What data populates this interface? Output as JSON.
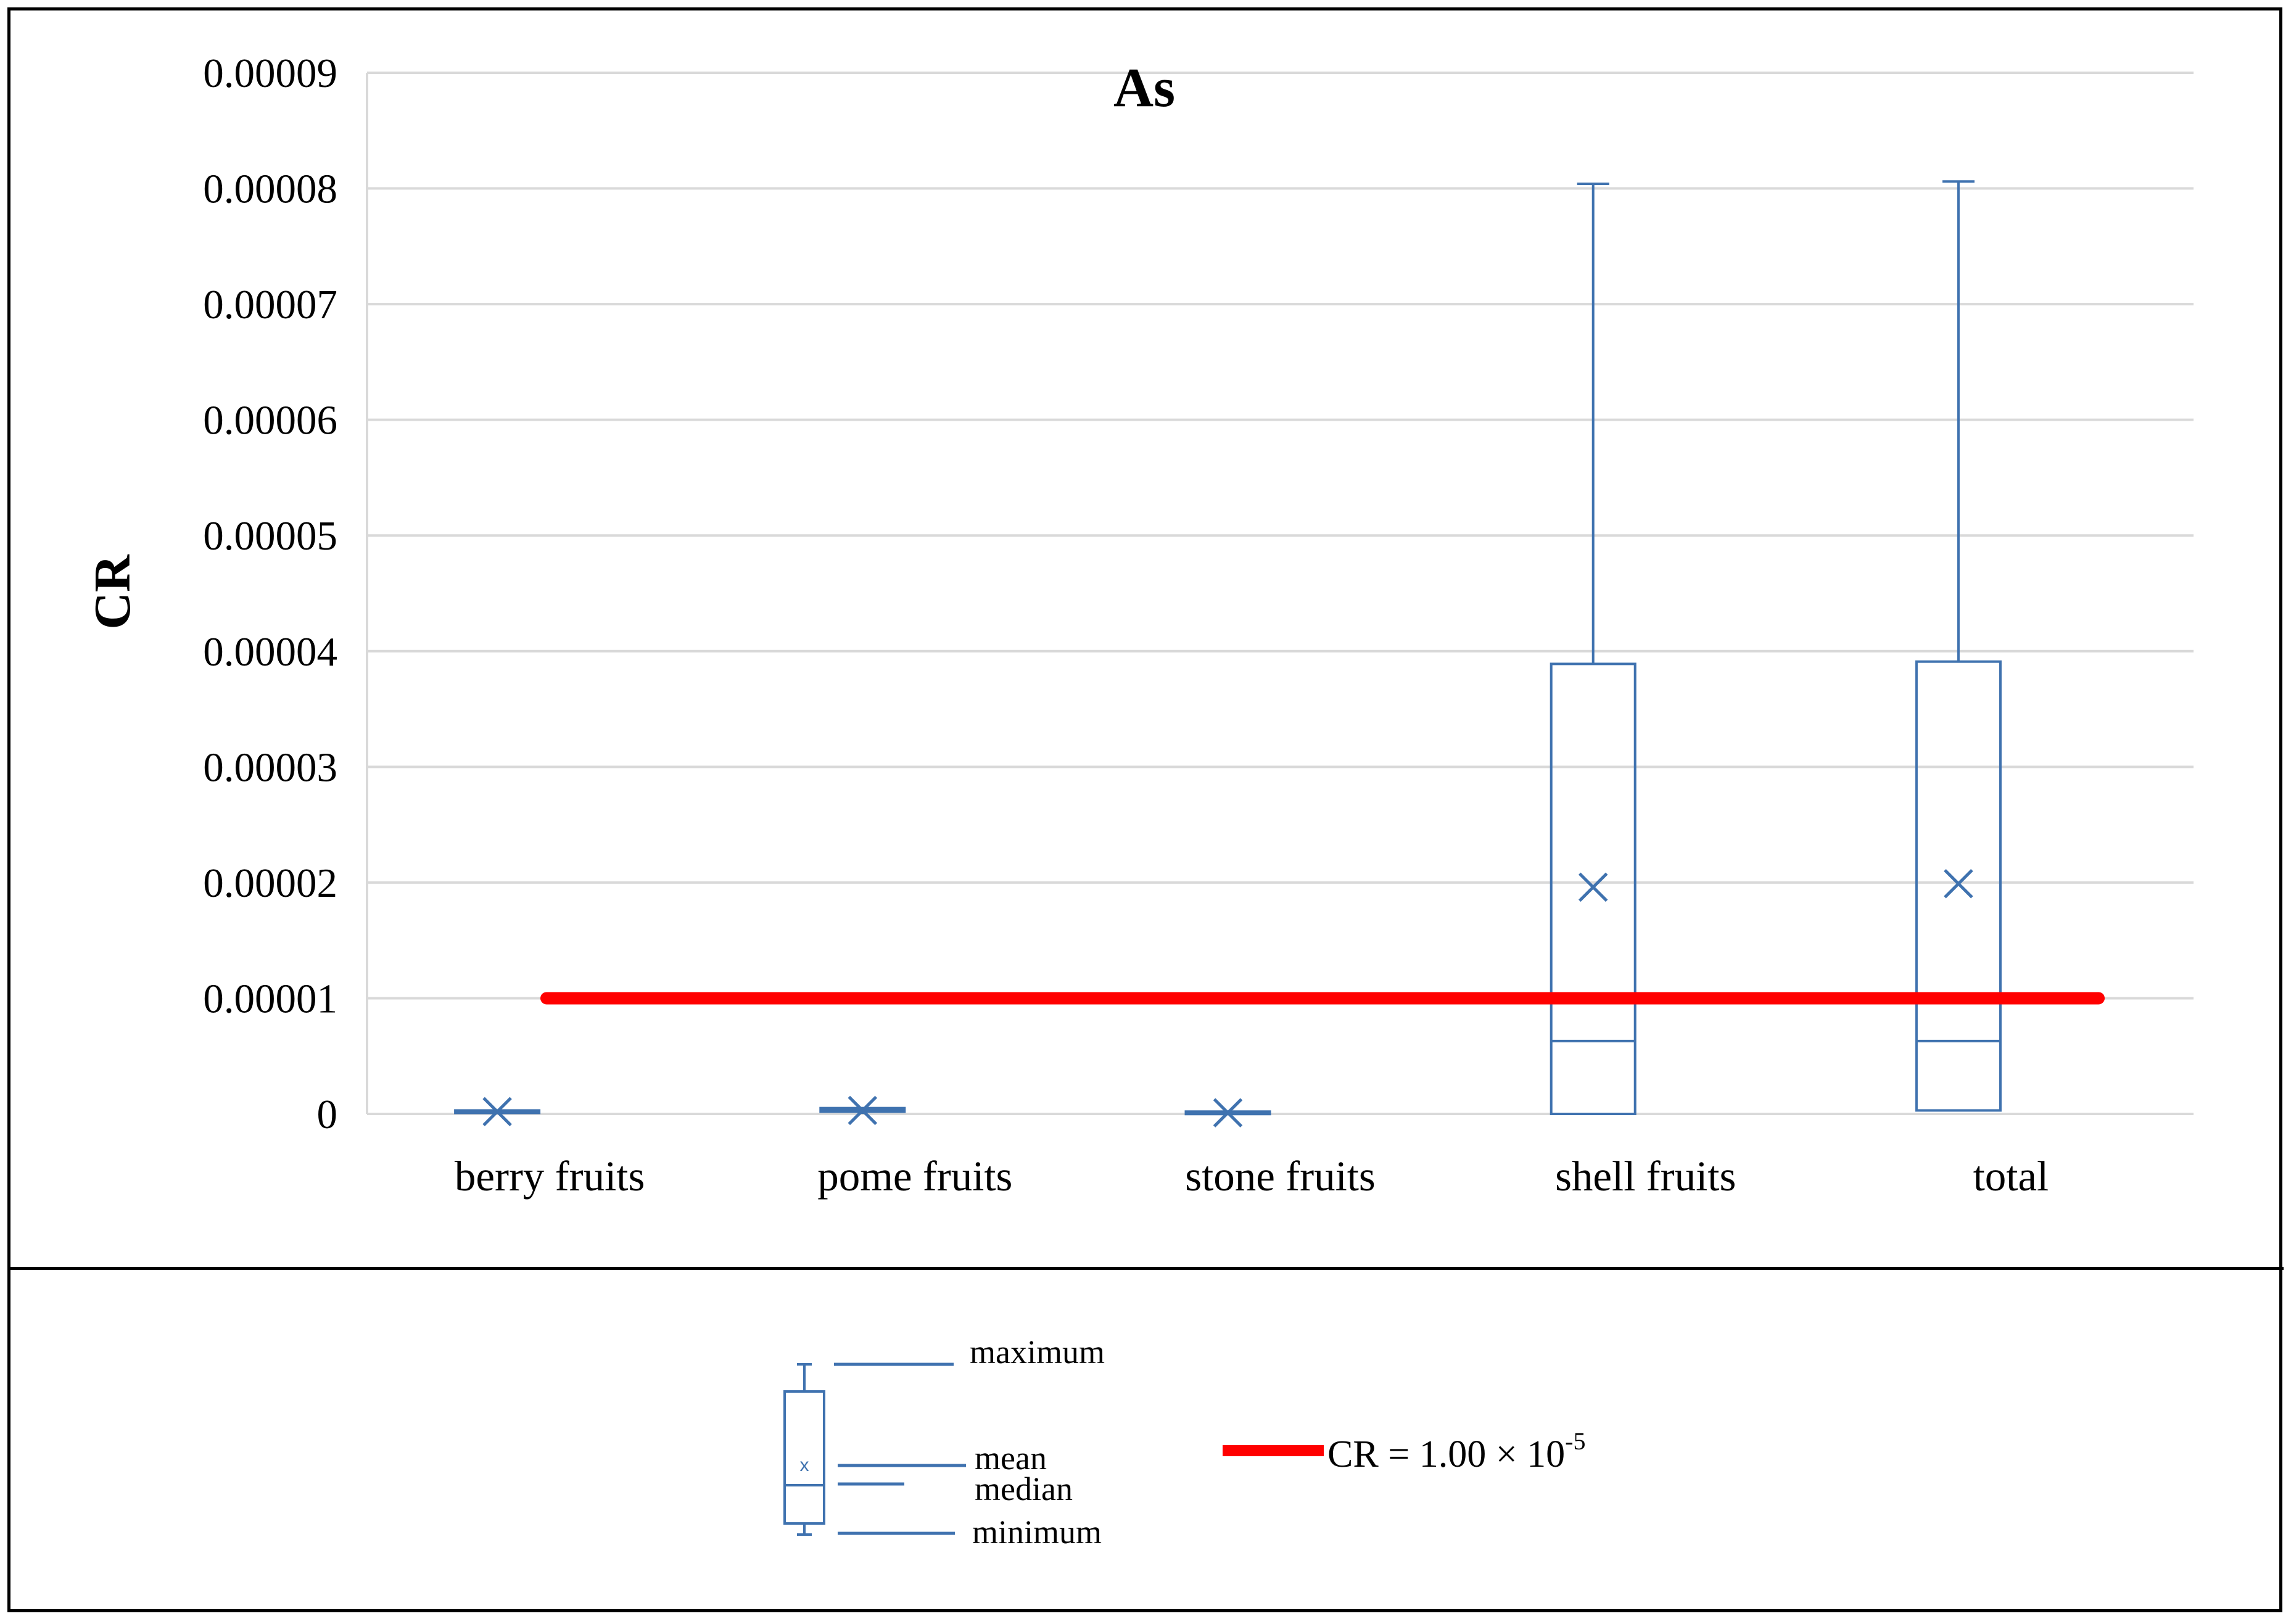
{
  "chart_data": {
    "type": "box",
    "title": "As",
    "ylabel": "CR",
    "xlabel": "",
    "ylim": [
      0,
      9e-05
    ],
    "yticks": [
      "0",
      "0.00001",
      "0.00002",
      "0.00003",
      "0.00004",
      "0.00005",
      "0.00006",
      "0.00007",
      "0.00008",
      "0.00009"
    ],
    "grid": true,
    "categories": [
      "berry fruits",
      "pome fruits",
      "stone fruits",
      "shell fruits",
      "total"
    ],
    "boxes": [
      {
        "category": "berry fruits",
        "min": 0.0,
        "q1": 1e-07,
        "median": 2e-07,
        "q3": 3e-07,
        "max": 4e-07,
        "mean": 2e-07
      },
      {
        "category": "pome fruits",
        "min": 0.0,
        "q1": 2e-07,
        "median": 3e-07,
        "q3": 5e-07,
        "max": 6e-07,
        "mean": 3e-07
      },
      {
        "category": "stone fruits",
        "min": 0.0,
        "q1": 1e-07,
        "median": 1e-07,
        "q3": 2e-07,
        "max": 3e-07,
        "mean": 1e-07
      },
      {
        "category": "shell fruits",
        "min": 0.0,
        "q1": 0.0,
        "median": 6.3e-06,
        "q3": 3.89e-05,
        "max": 8.04e-05,
        "mean": 1.96e-05
      },
      {
        "category": "total",
        "min": 3e-07,
        "q1": 3e-07,
        "median": 6.3e-06,
        "q3": 3.91e-05,
        "max": 8.06e-05,
        "mean": 1.99e-05
      }
    ],
    "threshold": {
      "value": 1e-05,
      "label_prefix": "CR = ",
      "label_mantissa": "1.00 × 10",
      "label_exponent": "-5",
      "color": "#ff0000"
    },
    "box_color": "#3f72af",
    "legend": {
      "position": "bottom",
      "maximum": "maximum",
      "mean": "mean",
      "median": "median",
      "minimum": "minimum",
      "mean_marker": "x"
    }
  }
}
